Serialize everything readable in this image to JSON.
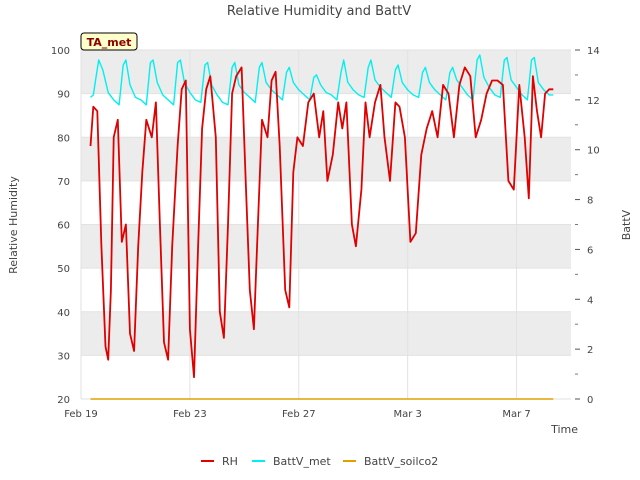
{
  "chart_data": {
    "type": "line",
    "title": "Relative Humidity and BattV",
    "station_label": "TA_met",
    "xlabel": "Time",
    "ylabel": "Relative Humidity",
    "y2label": "BattV",
    "x_ticks": [
      "Feb 19",
      "Feb 23",
      "Feb 27",
      "Mar 3",
      "Mar 7"
    ],
    "x_tick_days": [
      0,
      4,
      8,
      12,
      16
    ],
    "x_range_days": [
      0,
      18
    ],
    "ylim": [
      20,
      100
    ],
    "y_ticks": [
      20,
      30,
      40,
      50,
      60,
      70,
      80,
      90,
      100
    ],
    "y2lim": [
      0,
      14
    ],
    "y2_ticks": [
      0,
      2,
      4,
      6,
      8,
      10,
      12,
      14
    ],
    "grid": true,
    "legend_position": "bottom",
    "colors": {
      "RH": "#e00000",
      "BattV_met": "#00f0f0",
      "BattV_soilco2": "#e0a000",
      "band": "#ececec",
      "label_bg": "#ffffcc",
      "label_text": "#8b0000"
    },
    "series": [
      {
        "name": "RH",
        "axis": "left",
        "x_days": [
          0.35,
          0.45,
          0.6,
          0.75,
          0.9,
          1.0,
          1.1,
          1.2,
          1.35,
          1.5,
          1.65,
          1.8,
          1.95,
          2.1,
          2.25,
          2.4,
          2.6,
          2.75,
          2.9,
          3.05,
          3.2,
          3.35,
          3.55,
          3.7,
          3.85,
          4.0,
          4.15,
          4.3,
          4.45,
          4.6,
          4.75,
          4.95,
          5.1,
          5.25,
          5.4,
          5.55,
          5.7,
          5.9,
          6.05,
          6.2,
          6.35,
          6.5,
          6.65,
          6.85,
          7.0,
          7.15,
          7.3,
          7.5,
          7.65,
          7.8,
          7.95,
          8.15,
          8.35,
          8.55,
          8.75,
          8.9,
          9.05,
          9.25,
          9.45,
          9.6,
          9.75,
          9.95,
          10.1,
          10.3,
          10.45,
          10.6,
          10.8,
          11.0,
          11.15,
          11.35,
          11.55,
          11.7,
          11.9,
          12.1,
          12.3,
          12.5,
          12.7,
          12.9,
          13.1,
          13.3,
          13.5,
          13.7,
          13.9,
          14.1,
          14.3,
          14.5,
          14.7,
          14.9,
          15.1,
          15.3,
          15.5,
          15.7,
          15.9,
          16.1,
          16.3,
          16.45,
          16.6,
          16.75,
          16.9,
          17.05,
          17.2,
          17.35
        ],
        "values": [
          78,
          87,
          86,
          55,
          32,
          29,
          45,
          80,
          84,
          56,
          60,
          35,
          31,
          55,
          72,
          84,
          80,
          88,
          60,
          33,
          29,
          55,
          78,
          91,
          93,
          36,
          25,
          55,
          82,
          91,
          94,
          80,
          40,
          34,
          60,
          90,
          94,
          96,
          70,
          45,
          36,
          60,
          84,
          80,
          93,
          95,
          78,
          45,
          41,
          72,
          80,
          78,
          88,
          90,
          80,
          86,
          70,
          76,
          88,
          82,
          88,
          60,
          55,
          68,
          88,
          80,
          88,
          92,
          80,
          70,
          88,
          87,
          80,
          56,
          58,
          76,
          82,
          86,
          80,
          92,
          90,
          80,
          92,
          96,
          94,
          80,
          84,
          90,
          93,
          93,
          92,
          70,
          68,
          92,
          80,
          66,
          94,
          86,
          80,
          90,
          91,
          91
        ]
      },
      {
        "name": "BattV_met",
        "axis": "right",
        "x_days": [
          0.35,
          0.45,
          0.55,
          0.65,
          0.8,
          1.0,
          1.2,
          1.4,
          1.55,
          1.65,
          1.8,
          2.0,
          2.2,
          2.4,
          2.55,
          2.65,
          2.8,
          3.0,
          3.2,
          3.4,
          3.55,
          3.65,
          3.8,
          4.0,
          4.2,
          4.4,
          4.55,
          4.65,
          4.8,
          5.0,
          5.2,
          5.4,
          5.55,
          5.65,
          5.8,
          6.0,
          6.2,
          6.4,
          6.55,
          6.65,
          6.8,
          7.0,
          7.2,
          7.4,
          7.55,
          7.65,
          7.8,
          8.0,
          8.2,
          8.4,
          8.55,
          8.65,
          8.8,
          9.0,
          9.2,
          9.4,
          9.55,
          9.65,
          9.8,
          10.0,
          10.2,
          10.4,
          10.55,
          10.65,
          10.8,
          11.0,
          11.2,
          11.4,
          11.55,
          11.65,
          11.8,
          12.0,
          12.2,
          12.4,
          12.55,
          12.65,
          12.8,
          13.0,
          13.2,
          13.4,
          13.55,
          13.65,
          13.8,
          14.0,
          14.2,
          14.4,
          14.55,
          14.65,
          14.8,
          15.0,
          15.2,
          15.4,
          15.55,
          15.65,
          15.8,
          16.0,
          16.2,
          16.4,
          16.55,
          16.65,
          16.8,
          17.0,
          17.2,
          17.35
        ],
        "values": [
          12.1,
          12.2,
          12.9,
          13.6,
          13.2,
          12.3,
          12.0,
          11.8,
          13.4,
          13.6,
          12.6,
          12.1,
          12.0,
          11.8,
          13.5,
          13.6,
          12.7,
          12.2,
          12.0,
          11.8,
          13.5,
          13.6,
          12.7,
          12.3,
          12.0,
          11.9,
          13.4,
          13.5,
          12.6,
          12.2,
          11.9,
          11.8,
          13.3,
          13.5,
          12.6,
          12.3,
          12.1,
          11.9,
          13.3,
          13.5,
          12.7,
          12.4,
          12.2,
          12.0,
          13.1,
          13.3,
          12.7,
          12.4,
          12.2,
          12.0,
          12.9,
          13.0,
          12.6,
          12.3,
          12.2,
          12.0,
          13.1,
          13.6,
          12.7,
          12.4,
          12.2,
          12.1,
          13.3,
          13.6,
          12.8,
          12.5,
          12.3,
          12.1,
          13.2,
          13.4,
          12.7,
          12.4,
          12.2,
          12.1,
          13.1,
          13.3,
          12.7,
          12.4,
          12.2,
          12.0,
          13.1,
          13.3,
          12.8,
          12.5,
          12.2,
          12.0,
          13.6,
          13.8,
          12.9,
          12.5,
          12.2,
          12.1,
          13.6,
          13.7,
          12.8,
          12.5,
          12.2,
          12.0,
          13.6,
          13.7,
          12.7,
          12.4,
          12.2,
          12.2
        ]
      },
      {
        "name": "BattV_soilco2",
        "axis": "right",
        "x_days": [
          0.35,
          17.35
        ],
        "values": [
          0,
          0
        ]
      }
    ]
  }
}
